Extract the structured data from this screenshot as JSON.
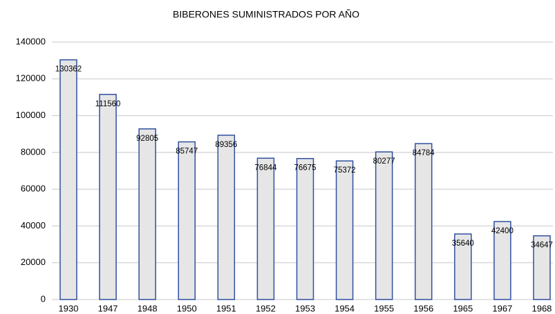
{
  "chart_data": {
    "type": "bar",
    "title": "BIBERONES SUMINISTRADOS POR AÑO",
    "categories": [
      "1930",
      "1947",
      "1948",
      "1950",
      "1951",
      "1952",
      "1953",
      "1954",
      "1955",
      "1956",
      "1965",
      "1967",
      "1968"
    ],
    "values": [
      130362,
      111560,
      92805,
      85747,
      89356,
      76844,
      76675,
      75372,
      80277,
      84784,
      35640,
      42400,
      34647
    ],
    "color": "#e6e6e6",
    "edge_color": "#2f4f9f",
    "ylim": [
      0,
      140000
    ],
    "yticks": [
      0,
      20000,
      40000,
      60000,
      80000,
      100000,
      120000,
      140000
    ],
    "grid": true
  }
}
